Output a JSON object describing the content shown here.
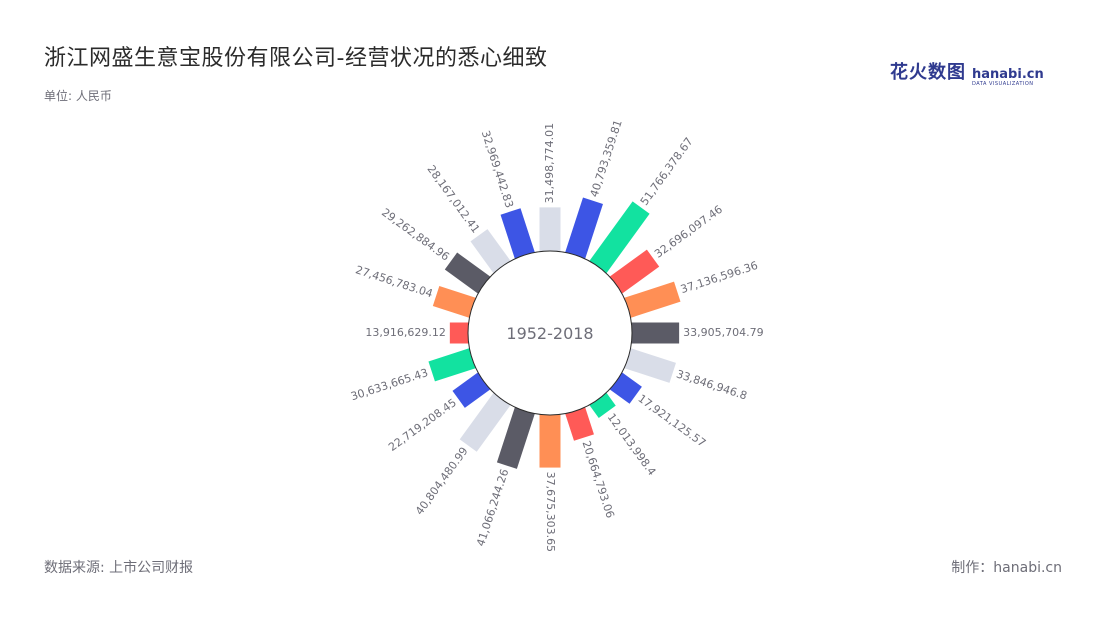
{
  "header": {
    "title": "浙江网盛生意宝股份有限公司-经营状况的悉心细致",
    "unit": "单位: 人民币"
  },
  "logo": {
    "cn": "花火数图",
    "en": "hanabi.cn",
    "sub": "DATA VISUALIZATION"
  },
  "footer": {
    "source": "数据来源: 上市公司财报",
    "credit": "制作：hanabi.cn"
  },
  "chart_data": {
    "type": "bar",
    "layout": "radial",
    "center_label": "1952-2018",
    "values": [
      31498774.01,
      40793359.81,
      51766378.67,
      32696097.46,
      37136596.36,
      33905704.79,
      33846946.8,
      17921125.57,
      12013998.4,
      20664793.06,
      37675303.65,
      41066244.26,
      40804480.99,
      22719208.45,
      30633665.43,
      13916629.12,
      27456783.04,
      29262884.96,
      28167012.41,
      32969442.83
    ],
    "labels": [
      "31,498,774.01",
      "40,793,359.81",
      "51,766,378.67",
      "32,696,097.46",
      "37,136,596.36",
      "33,905,704.79",
      "33,846,946.8",
      "17,921,125.57",
      "12,013,998.4",
      "20,664,793.06",
      "37,675,303.65",
      "41,066,244.26",
      "40,804,480.99",
      "22,719,208.45",
      "30,633,665.43",
      "13,916,629.12",
      "27,456,783.04",
      "29,262,884.96",
      "28,167,012.41",
      "32,969,442.83"
    ],
    "colors": [
      "#d9dde8",
      "#3d55e5",
      "#12e2a0",
      "#ff5a57",
      "#ff8f55",
      "#5b5b66"
    ]
  }
}
